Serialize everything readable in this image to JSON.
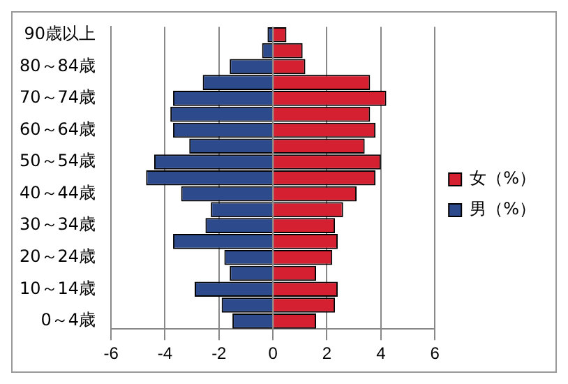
{
  "chart_data": {
    "type": "bar",
    "orientation": "horizontal",
    "stacked": true,
    "categories": [
      "90歳以上",
      null,
      "80～84歳",
      null,
      "70～74歳",
      null,
      "60～64歳",
      null,
      "50～54歳",
      null,
      "40～44歳",
      null,
      "30～34歳",
      null,
      "20～24歳",
      null,
      "10～14歳",
      null,
      "0～4歳"
    ],
    "series": [
      {
        "name": "女（%）",
        "color": "#d42030",
        "values": [
          0.5,
          1.1,
          1.2,
          3.6,
          4.2,
          3.6,
          3.8,
          3.4,
          4.0,
          3.8,
          3.1,
          2.6,
          2.3,
          2.4,
          2.2,
          1.6,
          2.4,
          2.3,
          1.6
        ]
      },
      {
        "name": "男（%）",
        "color": "#2c4a8c",
        "values": [
          -0.2,
          -0.4,
          -1.6,
          -2.6,
          -3.7,
          -3.8,
          -3.7,
          -3.1,
          -4.4,
          -4.7,
          -3.4,
          -2.3,
          -2.5,
          -3.7,
          -1.8,
          -1.6,
          -2.9,
          -1.9,
          -1.5
        ]
      }
    ],
    "xlim": [
      -6,
      6
    ],
    "xticks": [
      -6,
      -4,
      -2,
      0,
      2,
      4,
      6
    ],
    "grid": "x",
    "legend": "right"
  }
}
